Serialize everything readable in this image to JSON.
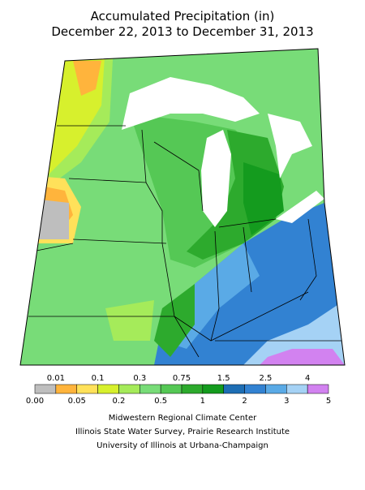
{
  "title": [
    "Accumulated Precipitation (in)",
    "December 22, 2013 to December 31, 2013"
  ],
  "legend": {
    "ticks": [
      "0.00",
      "0.01",
      "0.05",
      "0.1",
      "0.2",
      "0.3",
      "0.5",
      "0.75",
      "1",
      "1.5",
      "2",
      "2.5",
      "3",
      "4",
      "5"
    ],
    "colors": [
      "#bebebe",
      "#ffb43c",
      "#ffe15a",
      "#d7f02d",
      "#a5eb5a",
      "#78dc78",
      "#55c855",
      "#2daa2d",
      "#149b1e",
      "#1e6eb4",
      "#3282d2",
      "#5aaae6",
      "#a5d2f5",
      "#d282f0"
    ]
  },
  "credits": [
    "Midwestern Regional Climate Center",
    "Illinois State Water Survey, Prairie Research Institute",
    "University of Illinois at Urbana-Champaign"
  ]
}
